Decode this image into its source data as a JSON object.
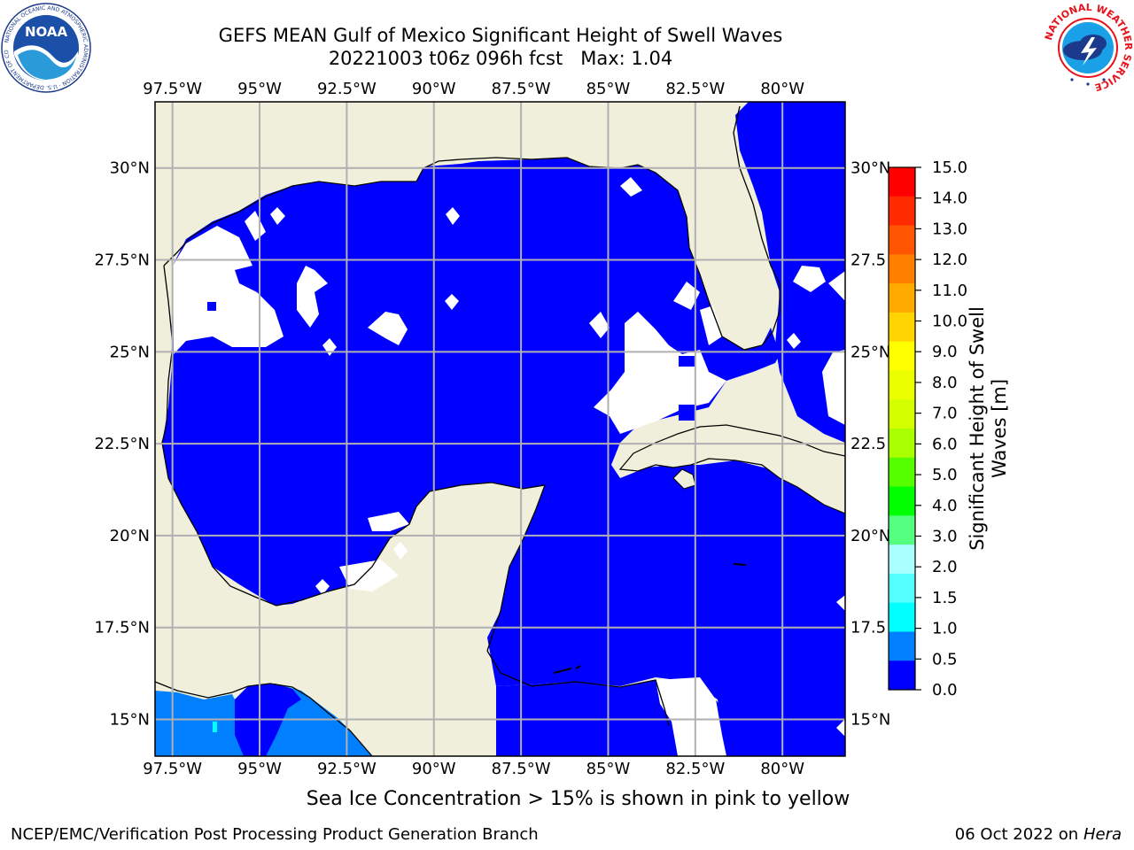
{
  "header": {
    "title_line1": "GEFS MEAN Gulf of Mexico Significant Height of Swell Waves",
    "title_line2_date": "20221003 t06z 096h fcst",
    "title_line2_max": "Max: 1.04"
  },
  "logos": {
    "left": {
      "text": "NOAA",
      "ring_text": "NATIONAL OCEANIC AND ATMOSPHERIC ADMINISTRATION · U.S. DEPARTMENT OF COMMERCE",
      "icon": "noaa-logo-icon"
    },
    "right": {
      "ring_text": "NATIONAL WEATHER SERVICE",
      "icon": "nws-logo-icon"
    }
  },
  "map": {
    "lon_labels": [
      "97.5°W",
      "95°W",
      "92.5°W",
      "90°W",
      "87.5°W",
      "85°W",
      "82.5°W",
      "80°W"
    ],
    "lon_values": [
      -97.5,
      -95,
      -92.5,
      -90,
      -87.5,
      -85,
      -82.5,
      -80
    ],
    "lat_labels": [
      "30°N",
      "27.5°N",
      "25°N",
      "22.5°N",
      "20°N",
      "17.5°N",
      "15°N"
    ],
    "lat_values": [
      30,
      27.5,
      25,
      22.5,
      20,
      17.5,
      15
    ],
    "right_lat_labels": [
      "30°N",
      "27.5",
      "25°N",
      "22.5",
      "20°N",
      "17.5",
      "15°N"
    ],
    "extent": {
      "lon_min": -98,
      "lon_max": -78.2,
      "lat_min": 14,
      "lat_max": 31.8
    },
    "colors": {
      "land": "#efefdc",
      "water_0_0_5": "#0000ff",
      "water_0_5_1_0": "#0080ff",
      "water_1_0_1_5": "#00ffff",
      "grid": "#b0b0b0",
      "coast": "#000000"
    }
  },
  "colorbar": {
    "label": "Significant Height of Swell Waves [m]",
    "label_line1": "Significant Height of Swell",
    "label_line2": "Waves [m]",
    "tick_labels": [
      "15.0",
      "14.0",
      "13.0",
      "12.0",
      "11.0",
      "10.0",
      "9.0",
      "8.0",
      "7.0",
      "6.0",
      "5.0",
      "4.0",
      "3.0",
      "2.0",
      "1.5",
      "1.0",
      "0.5",
      "0.0"
    ],
    "colors_top_to_bottom": [
      "#ff0000",
      "#ff2a00",
      "#ff5500",
      "#ff8000",
      "#ffaa00",
      "#ffd400",
      "#ffff00",
      "#eaff00",
      "#d4ff00",
      "#aaff00",
      "#55ff00",
      "#00ff00",
      "#55ff80",
      "#aaffff",
      "#55ffff",
      "#00ffff",
      "#0080ff",
      "#0000ff"
    ]
  },
  "footer": {
    "ice_note": "Sea Ice Concentration > 15% is shown in pink to yellow",
    "left": "NCEP/EMC/Verification Post Processing Product Generation Branch",
    "right_date": "06 Oct 2022 on",
    "right_host": "Hera"
  }
}
